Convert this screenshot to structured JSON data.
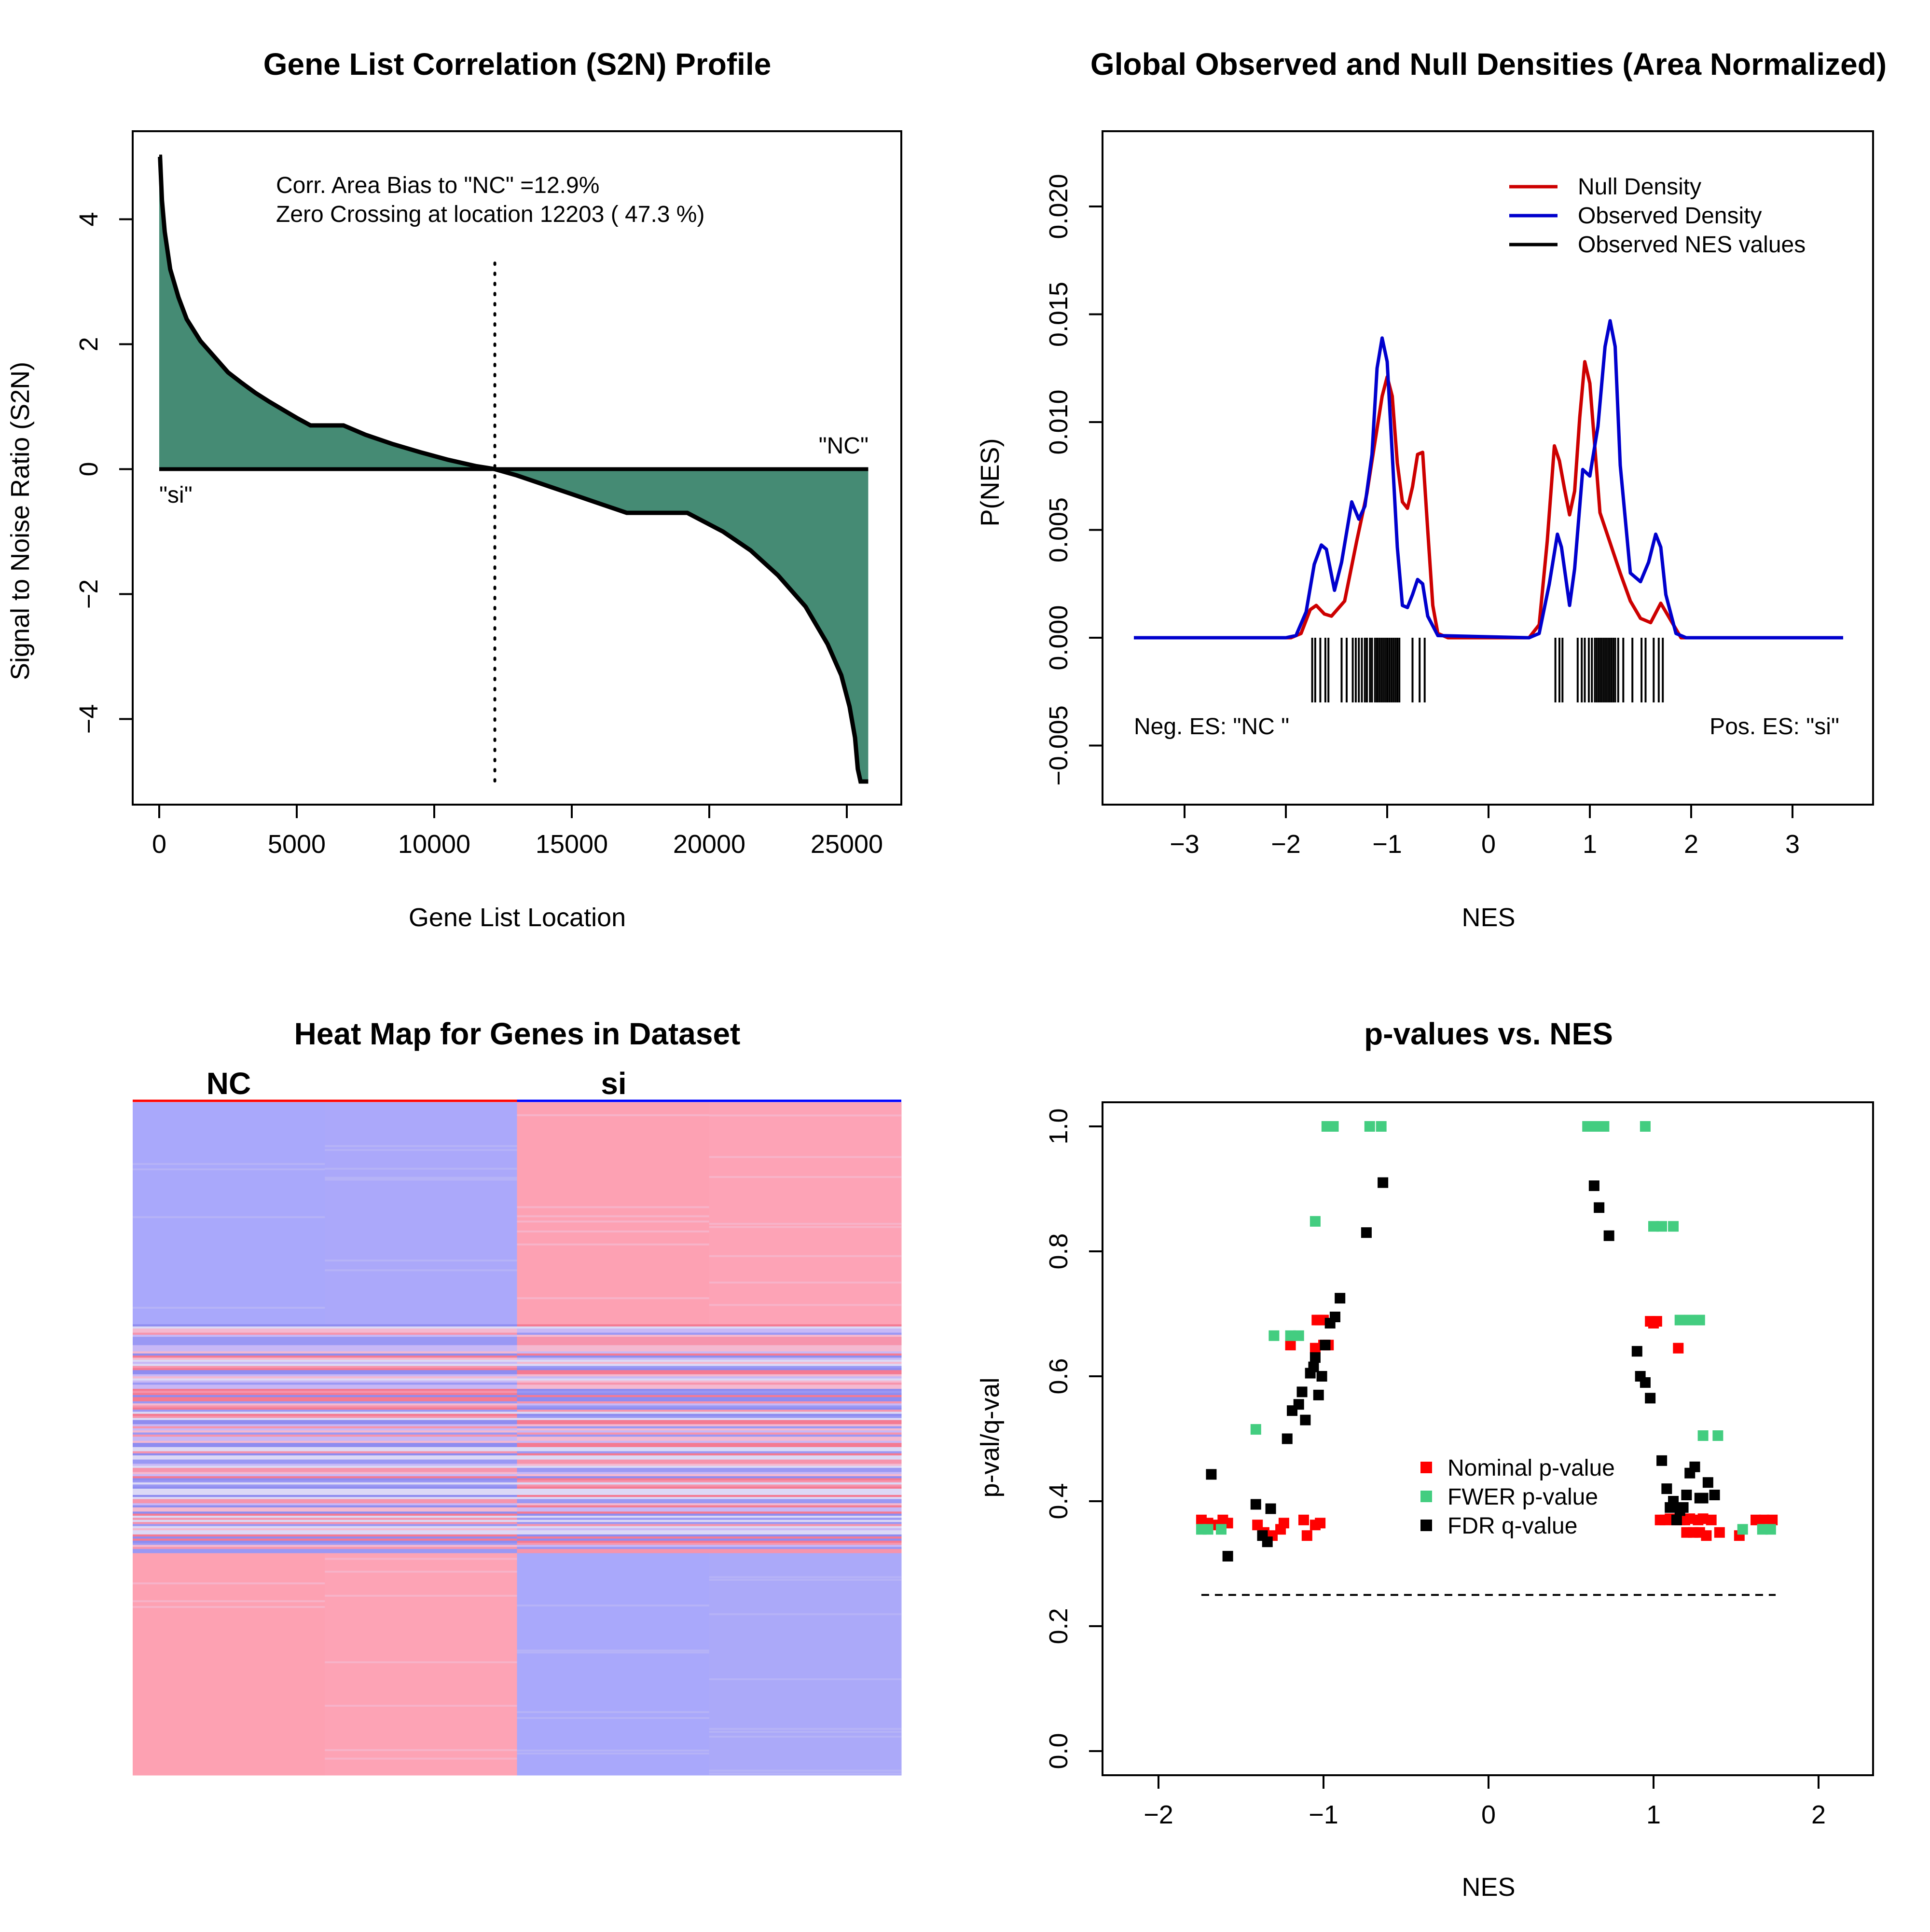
{
  "chart_data": [
    {
      "type": "area",
      "title": "Gene List Correlation (S2N) Profile",
      "xlabel": "Gene List Location",
      "ylabel": "Signal to Noise Ratio (S2N)",
      "xlim": [
        0,
        26000
      ],
      "ylim": [
        -5,
        5
      ],
      "xticks": [
        0,
        5000,
        10000,
        15000,
        20000,
        25000
      ],
      "yticks": [
        -4,
        -2,
        0,
        2,
        4
      ],
      "xtick_labels": [
        "0",
        "5000",
        "10000",
        "15000",
        "20000",
        "25000"
      ],
      "ytick_labels": [
        "−4",
        "−2",
        "0",
        "2",
        "4"
      ],
      "annotations": [
        "Corr. Area Bias to \"NC\" =12.9%",
        "Zero Crossing at location  12203  ( 47.3  %)"
      ],
      "end_labels": {
        "left": "\"si\"",
        "right": "\"NC\""
      },
      "zero_crossing": 12203,
      "fill_color": "#458B74",
      "x": [
        0,
        30,
        100,
        200,
        400,
        700,
        1000,
        1500,
        2000,
        2500,
        3000,
        3500,
        4000,
        4500,
        5000,
        5500,
        6700,
        7500,
        8500,
        9500,
        10500,
        11500,
        12203,
        13000,
        14000,
        15000,
        16000,
        17000,
        19200,
        20500,
        21500,
        22500,
        23500,
        24300,
        24800,
        25100,
        25300,
        25400,
        25500,
        25600,
        25780
      ],
      "y": [
        5.0,
        5.0,
        4.3,
        3.8,
        3.2,
        2.75,
        2.4,
        2.05,
        1.8,
        1.55,
        1.38,
        1.22,
        1.08,
        0.95,
        0.82,
        0.7,
        0.7,
        0.55,
        0.4,
        0.27,
        0.15,
        0.05,
        0.0,
        -0.1,
        -0.25,
        -0.4,
        -0.55,
        -0.7,
        -0.7,
        -1.0,
        -1.3,
        -1.7,
        -2.2,
        -2.8,
        -3.3,
        -3.8,
        -4.3,
        -4.8,
        -5.0,
        -5.0,
        -5.0
      ]
    },
    {
      "type": "line",
      "title": "Global Observed and Null Densities (Area Normalized)",
      "xlabel": "NES",
      "ylabel": "P(NES)",
      "xlim": [
        -3.6,
        3.7
      ],
      "ylim": [
        -0.0075,
        0.0235
      ],
      "xticks": [
        -3,
        -2,
        -1,
        0,
        1,
        2,
        3
      ],
      "yticks": [
        -0.005,
        0.0,
        0.005,
        0.01,
        0.015,
        0.02
      ],
      "xtick_labels": [
        "−3",
        "−2",
        "−1",
        "0",
        "1",
        "2",
        "3"
      ],
      "ytick_labels": [
        "−0.005",
        "0.000",
        "0.005",
        "0.010",
        "0.015",
        "0.020"
      ],
      "corner_labels": {
        "left": "Neg. ES: \"NC \"",
        "right": "Pos. ES: \"si\""
      },
      "legend_position": "top-right",
      "series": [
        {
          "name": "Null Density",
          "color": "#CD0000",
          "x": [
            -3.5,
            -1.95,
            -1.85,
            -1.76,
            -1.7,
            -1.62,
            -1.55,
            -1.42,
            -1.3,
            -1.2,
            -1.12,
            -1.05,
            -1.0,
            -0.95,
            -0.9,
            -0.85,
            -0.8,
            -0.75,
            -0.7,
            -0.65,
            -0.6,
            -0.55,
            -0.5,
            -0.4,
            0.4,
            0.5,
            0.58,
            0.65,
            0.7,
            0.75,
            0.8,
            0.85,
            0.9,
            0.95,
            1.0,
            1.05,
            1.1,
            1.2,
            1.3,
            1.4,
            1.5,
            1.6,
            1.7,
            1.8,
            1.9,
            3.5
          ],
          "y": [
            0,
            0,
            0.0002,
            0.0013,
            0.0015,
            0.0011,
            0.001,
            0.0017,
            0.0045,
            0.0067,
            0.0091,
            0.0112,
            0.0121,
            0.0112,
            0.0081,
            0.0063,
            0.006,
            0.007,
            0.0085,
            0.0086,
            0.005,
            0.0015,
            0.0002,
            0,
            0,
            0.0006,
            0.0045,
            0.0089,
            0.0082,
            0.0069,
            0.0057,
            0.0068,
            0.0102,
            0.0128,
            0.0118,
            0.0088,
            0.0058,
            0.0044,
            0.003,
            0.0017,
            0.0009,
            0.0007,
            0.0016,
            0.0008,
            0,
            0
          ]
        },
        {
          "name": "Observed Density",
          "color": "#0000CD",
          "x": [
            -3.5,
            -2.0,
            -1.9,
            -1.8,
            -1.72,
            -1.65,
            -1.6,
            -1.52,
            -1.45,
            -1.35,
            -1.28,
            -1.22,
            -1.15,
            -1.1,
            -1.05,
            -1.0,
            -0.95,
            -0.9,
            -0.85,
            -0.8,
            -0.75,
            -0.7,
            -0.65,
            -0.6,
            -0.5,
            0.4,
            0.5,
            0.6,
            0.68,
            0.72,
            0.8,
            0.85,
            0.93,
            1.0,
            1.08,
            1.15,
            1.2,
            1.25,
            1.3,
            1.4,
            1.5,
            1.58,
            1.65,
            1.7,
            1.75,
            1.85,
            1.95,
            3.5
          ],
          "y": [
            0,
            0,
            0.0001,
            0.0012,
            0.0034,
            0.0043,
            0.0041,
            0.0022,
            0.0035,
            0.0063,
            0.0055,
            0.0061,
            0.0085,
            0.0125,
            0.0139,
            0.0128,
            0.0085,
            0.0042,
            0.0015,
            0.0014,
            0.002,
            0.0027,
            0.0025,
            0.001,
            0.0001,
            0,
            0.0002,
            0.0025,
            0.0048,
            0.0042,
            0.0015,
            0.0032,
            0.0078,
            0.0075,
            0.0098,
            0.0135,
            0.0147,
            0.0135,
            0.008,
            0.003,
            0.0026,
            0.0035,
            0.0048,
            0.0042,
            0.002,
            0.0002,
            0,
            0
          ]
        }
      ],
      "observed_nes_values": {
        "name": "Observed NES values",
        "color": "#000000",
        "values": [
          -1.74,
          -1.71,
          -1.66,
          -1.61,
          -1.58,
          -1.45,
          -1.4,
          -1.34,
          -1.31,
          -1.28,
          -1.25,
          -1.22,
          -1.2,
          -1.17,
          -1.15,
          -1.12,
          -1.1,
          -1.08,
          -1.06,
          -1.04,
          -1.02,
          -1.0,
          -0.98,
          -0.96,
          -0.94,
          -0.92,
          -0.9,
          -0.88,
          -0.75,
          -0.68,
          -0.63,
          0.66,
          0.7,
          0.73,
          0.88,
          0.92,
          0.95,
          0.99,
          1.02,
          1.05,
          1.07,
          1.09,
          1.11,
          1.13,
          1.15,
          1.17,
          1.19,
          1.21,
          1.23,
          1.25,
          1.28,
          1.33,
          1.42,
          1.51,
          1.55,
          1.63,
          1.68,
          1.72
        ]
      }
    },
    {
      "type": "heatmap",
      "title": "Heat Map for Genes in Dataset",
      "column_groups": [
        {
          "label": "NC",
          "color": "#FF0000"
        },
        {
          "label": "si",
          "color": "#0000FF"
        }
      ],
      "columns": 4,
      "row_blocks": [
        {
          "fraction": 0.33,
          "colors": [
            "#A9A8FB",
            "#ABA8FA",
            "#FDA1B3",
            "#FDA3B6"
          ]
        },
        {
          "fraction": 0.34,
          "mixed": true
        },
        {
          "fraction": 0.33,
          "colors": [
            "#FDA1B2",
            "#FDA3B5",
            "#A9A8FB",
            "#ABA9F9"
          ]
        }
      ],
      "palette": [
        "#A9A8FB",
        "#C8B8F6",
        "#EAB6E6",
        "#FDA1B3",
        "#F47A92",
        "#9A98F4",
        "#DCD9F6",
        "#F4B9D0",
        "#8E8CF0",
        "#F694AC"
      ]
    },
    {
      "type": "scatter",
      "title": "p-values vs. NES",
      "xlabel": "NES",
      "ylabel": "p-val/q-val",
      "xlim": [
        -2.5,
        2.35
      ],
      "ylim": [
        -0.04,
        1.04
      ],
      "xticks": [
        -2,
        -1,
        0,
        1,
        2
      ],
      "yticks": [
        0.0,
        0.2,
        0.4,
        0.6,
        0.8,
        1.0
      ],
      "xtick_labels": [
        "−2",
        "−1",
        "0",
        "1",
        "2"
      ],
      "ytick_labels": [
        "0.0",
        "0.2",
        "0.4",
        "0.6",
        "0.8",
        "1.0"
      ],
      "reference_line": {
        "y": 0.25,
        "x": [
          -1.74,
          1.74
        ]
      },
      "legend_position": "center",
      "series": [
        {
          "name": "Nominal p-value",
          "color": "#FF0000",
          "points": [
            [
              -1.74,
              0.37
            ],
            [
              -1.7,
              0.365
            ],
            [
              -1.66,
              0.362
            ],
            [
              -1.61,
              0.37
            ],
            [
              -1.58,
              0.365
            ],
            [
              -1.4,
              0.362
            ],
            [
              -1.36,
              0.35
            ],
            [
              -1.31,
              0.345
            ],
            [
              -1.26,
              0.355
            ],
            [
              -1.24,
              0.365
            ],
            [
              -1.12,
              0.37
            ],
            [
              -1.1,
              0.345
            ],
            [
              -1.05,
              0.362
            ],
            [
              -1.02,
              0.365
            ],
            [
              -1.2,
              0.65
            ],
            [
              -1.05,
              0.645
            ],
            [
              -1.0,
              0.65
            ],
            [
              -0.97,
              0.65
            ],
            [
              -1.04,
              0.69
            ],
            [
              -1.0,
              0.69
            ],
            [
              -1.02,
              0.69
            ],
            [
              0.98,
              0.688
            ],
            [
              1.0,
              0.685
            ],
            [
              1.02,
              0.688
            ],
            [
              1.15,
              0.645
            ],
            [
              1.04,
              0.37
            ],
            [
              1.07,
              0.37
            ],
            [
              1.1,
              0.372
            ],
            [
              1.13,
              0.37
            ],
            [
              1.16,
              0.37
            ],
            [
              1.19,
              0.37
            ],
            [
              1.22,
              0.372
            ],
            [
              1.27,
              0.37
            ],
            [
              1.3,
              0.372
            ],
            [
              1.35,
              0.37
            ],
            [
              1.2,
              0.35
            ],
            [
              1.24,
              0.35
            ],
            [
              1.28,
              0.35
            ],
            [
              1.32,
              0.345
            ],
            [
              1.4,
              0.35
            ],
            [
              1.52,
              0.345
            ],
            [
              1.62,
              0.37
            ],
            [
              1.67,
              0.37
            ],
            [
              1.72,
              0.37
            ]
          ]
        },
        {
          "name": "FWER p-value",
          "color": "#43CD80",
          "points": [
            [
              -0.98,
              1.0
            ],
            [
              -0.96,
              1.0
            ],
            [
              -0.94,
              1.0
            ],
            [
              -0.72,
              1.0
            ],
            [
              -0.65,
              1.0
            ],
            [
              0.6,
              1.0
            ],
            [
              0.65,
              1.0
            ],
            [
              0.7,
              1.0
            ],
            [
              0.95,
              1.0
            ],
            [
              -1.05,
              0.848
            ],
            [
              1.0,
              0.84
            ],
            [
              1.05,
              0.84
            ],
            [
              1.12,
              0.84
            ],
            [
              -1.3,
              0.665
            ],
            [
              -1.2,
              0.665
            ],
            [
              -1.15,
              0.665
            ],
            [
              1.16,
              0.69
            ],
            [
              1.22,
              0.69
            ],
            [
              1.28,
              0.69
            ],
            [
              -1.41,
              0.515
            ],
            [
              1.3,
              0.505
            ],
            [
              1.39,
              0.505
            ],
            [
              -1.74,
              0.355
            ],
            [
              -1.7,
              0.355
            ],
            [
              -1.62,
              0.355
            ],
            [
              1.54,
              0.355
            ],
            [
              1.66,
              0.355
            ],
            [
              1.71,
              0.355
            ]
          ]
        },
        {
          "name": "FDR q-value",
          "color": "#000000",
          "points": [
            [
              -1.68,
              0.443
            ],
            [
              -1.58,
              0.312
            ],
            [
              -1.41,
              0.395
            ],
            [
              -1.37,
              0.345
            ],
            [
              -1.34,
              0.335
            ],
            [
              -1.32,
              0.388
            ],
            [
              -1.22,
              0.5
            ],
            [
              -1.19,
              0.545
            ],
            [
              -1.15,
              0.555
            ],
            [
              -1.13,
              0.575
            ],
            [
              -1.11,
              0.53
            ],
            [
              -1.08,
              0.605
            ],
            [
              -1.06,
              0.615
            ],
            [
              -1.05,
              0.63
            ],
            [
              -1.03,
              0.57
            ],
            [
              -1.01,
              0.6
            ],
            [
              -0.99,
              0.65
            ],
            [
              -0.96,
              0.685
            ],
            [
              -0.93,
              0.695
            ],
            [
              -0.9,
              0.725
            ],
            [
              -0.74,
              0.83
            ],
            [
              -0.64,
              0.91
            ],
            [
              0.64,
              0.905
            ],
            [
              0.67,
              0.87
            ],
            [
              0.73,
              0.825
            ],
            [
              0.9,
              0.64
            ],
            [
              0.92,
              0.6
            ],
            [
              0.95,
              0.59
            ],
            [
              0.98,
              0.565
            ],
            [
              1.05,
              0.465
            ],
            [
              1.08,
              0.42
            ],
            [
              1.1,
              0.39
            ],
            [
              1.12,
              0.4
            ],
            [
              1.14,
              0.37
            ],
            [
              1.16,
              0.385
            ],
            [
              1.18,
              0.39
            ],
            [
              1.2,
              0.41
            ],
            [
              1.22,
              0.445
            ],
            [
              1.25,
              0.455
            ],
            [
              1.28,
              0.405
            ],
            [
              1.3,
              0.405
            ],
            [
              1.33,
              0.43
            ],
            [
              1.37,
              0.41
            ]
          ]
        }
      ]
    }
  ]
}
